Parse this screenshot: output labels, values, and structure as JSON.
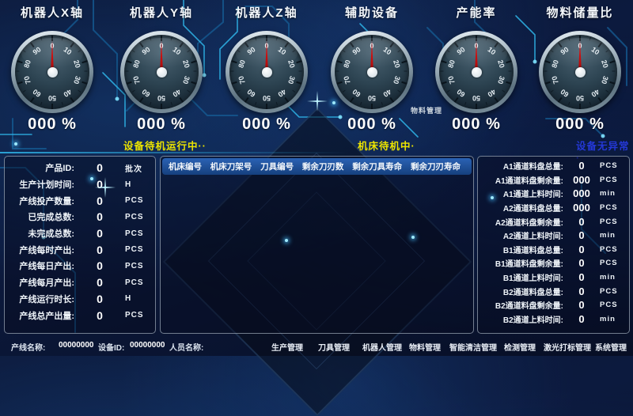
{
  "gauges": {
    "dial_numbers": [
      "0",
      "10",
      "20",
      "30",
      "40",
      "50",
      "60",
      "70",
      "80",
      "90"
    ],
    "items": [
      {
        "label": "机器人X轴",
        "value": "000 %"
      },
      {
        "label": "机器人Y轴",
        "value": "000 %"
      },
      {
        "label": "机器人Z轴",
        "value": "000 %"
      },
      {
        "label": "辅助设备",
        "value": "000 %"
      },
      {
        "label": "产能率",
        "value": "000 %"
      },
      {
        "label": "物料储量比",
        "value": "000 %"
      }
    ]
  },
  "statuses": [
    {
      "text": "设备待机运行中··",
      "color": "#ece400"
    },
    {
      "text": "机床待机中·",
      "color": "#ece400"
    },
    {
      "text": "设备无异常·",
      "color": "#2438d6"
    }
  ],
  "mini_label": "物料管理",
  "left_panel": {
    "rows": [
      {
        "label": "产品ID:",
        "value": "0",
        "unit": "批次"
      },
      {
        "label": "生产计划时间:",
        "value": "0",
        "unit": "H"
      },
      {
        "label": "产线投产数量:",
        "value": "0",
        "unit": "PCS"
      },
      {
        "label": "已完成总数:",
        "value": "0",
        "unit": "PCS"
      },
      {
        "label": "未完成总数:",
        "value": "0",
        "unit": "PCS"
      },
      {
        "label": "产线每时产出:",
        "value": "0",
        "unit": "PCS"
      },
      {
        "label": "产线每日产出:",
        "value": "0",
        "unit": "PCS"
      },
      {
        "label": "产线每月产出:",
        "value": "0",
        "unit": "PCS"
      },
      {
        "label": "产线运行时长:",
        "value": "0",
        "unit": "H"
      },
      {
        "label": "产线总产出量:",
        "value": "0",
        "unit": "PCS"
      }
    ]
  },
  "tool_table": {
    "headers": [
      "机床编号",
      "机床刀架号",
      "刀具编号",
      "剩余刀刃数",
      "剩余刀具寿命",
      "剩余刀刃寿命"
    ]
  },
  "material_panel": {
    "rows": [
      {
        "label": "A1通道料盘总量:",
        "value": "0",
        "unit": "PCS"
      },
      {
        "label": "A1通道料盘剩余量:",
        "value": "000",
        "unit": "PCS"
      },
      {
        "label": "A1通道上料时间:",
        "value": "000",
        "unit": "min"
      },
      {
        "label": "A2通道料盘总量:",
        "value": "000",
        "unit": "PCS"
      },
      {
        "label": "A2通道料盘剩余量:",
        "value": "0",
        "unit": "PCS"
      },
      {
        "label": "A2通道上料时间:",
        "value": "0",
        "unit": "min"
      },
      {
        "label": "B1通道料盘总量:",
        "value": "0",
        "unit": "PCS"
      },
      {
        "label": "B1通道料盘剩余量:",
        "value": "0",
        "unit": "PCS"
      },
      {
        "label": "B1通道上料时间:",
        "value": "0",
        "unit": "min"
      },
      {
        "label": "B2通道料盘总量:",
        "value": "0",
        "unit": "PCS"
      },
      {
        "label": "B2通道料盘剩余量:",
        "value": "0",
        "unit": "PCS"
      },
      {
        "label": "B2通道上料时间:",
        "value": "0",
        "unit": "min"
      }
    ]
  },
  "footer": {
    "info": [
      {
        "label": "产线名称:",
        "value": "00000000"
      },
      {
        "label": "设备ID:",
        "value": "00000000"
      },
      {
        "label": "人员名称:",
        "value": ""
      }
    ],
    "menu": [
      "生产管理",
      "刀具管理",
      "机器人管理",
      "物料管理",
      "智能清洁管理",
      "检测管理",
      "激光打标管理",
      "系统管理"
    ]
  },
  "colors": {
    "accent_cyan": "#2fb6ea",
    "status_yellow": "#ece400",
    "status_blue": "#2438d6",
    "needle_red": "#d41010",
    "table_header_blue": "#1d4f9c"
  }
}
